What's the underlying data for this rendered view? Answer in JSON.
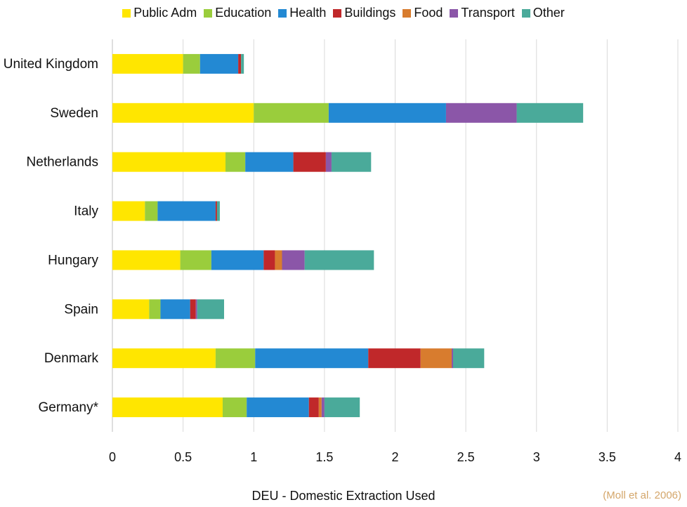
{
  "chart_data": {
    "type": "bar",
    "orientation": "horizontal",
    "stacked": true,
    "categories": [
      "United Kingdom",
      "Sweden",
      "Netherlands",
      "Italy",
      "Hungary",
      "Spain",
      "Denmark",
      "Germany*"
    ],
    "series": [
      {
        "name": "Public Adm",
        "color": "#ffe600",
        "values": [
          0.5,
          1.0,
          0.8,
          0.23,
          0.48,
          0.26,
          0.73,
          0.78
        ]
      },
      {
        "name": "Education",
        "color": "#9acd3c",
        "values": [
          0.12,
          0.53,
          0.14,
          0.09,
          0.22,
          0.08,
          0.28,
          0.17
        ]
      },
      {
        "name": "Health",
        "color": "#2389d3",
        "values": [
          0.27,
          0.83,
          0.34,
          0.41,
          0.37,
          0.21,
          0.8,
          0.44
        ]
      },
      {
        "name": "Buildings",
        "color": "#c0282a",
        "values": [
          0.02,
          0.0,
          0.23,
          0.01,
          0.08,
          0.04,
          0.37,
          0.07
        ]
      },
      {
        "name": "Food",
        "color": "#d87c2e",
        "values": [
          0.0,
          0.0,
          0.0,
          0.0,
          0.05,
          0.0,
          0.22,
          0.02
        ]
      },
      {
        "name": "Transport",
        "color": "#8b56a8",
        "values": [
          0.0,
          0.5,
          0.04,
          0.0,
          0.16,
          0.01,
          0.01,
          0.02
        ]
      },
      {
        "name": "Other",
        "color": "#4aaa9a",
        "values": [
          0.02,
          0.47,
          0.28,
          0.02,
          0.49,
          0.19,
          0.22,
          0.25
        ]
      }
    ],
    "xlim": [
      0,
      4
    ],
    "xticks": [
      "0",
      "0.5",
      "1",
      "1.5",
      "2",
      "2.5",
      "3",
      "3.5",
      "4"
    ],
    "xlabel": "DEU - Domestic Extraction Used",
    "grid": "vertical",
    "legend_position": "top"
  },
  "source_note": "(Moll et al. 2006)"
}
